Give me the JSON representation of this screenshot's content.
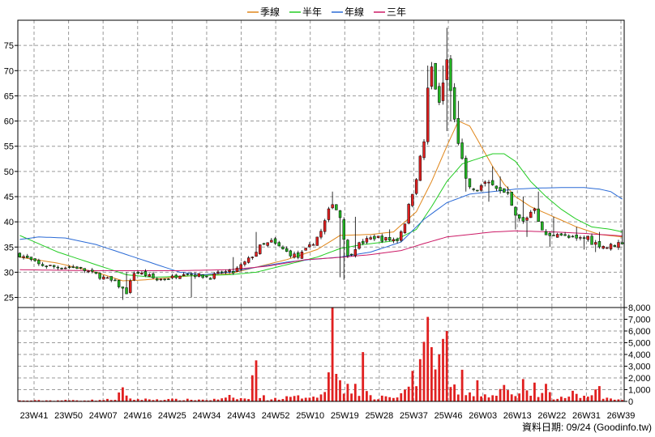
{
  "chart_data": {
    "type": "candlestick",
    "legend_position": "top-center",
    "legend": [
      {
        "key": "ma_quarter",
        "label": "季線",
        "color": "#e0861a"
      },
      {
        "key": "ma_half",
        "label": "半年",
        "color": "#22cc22"
      },
      {
        "key": "ma_year",
        "label": "年線",
        "color": "#2a6ad6"
      },
      {
        "key": "ma_3year",
        "label": "三年",
        "color": "#cc1a66"
      }
    ],
    "price_axis": {
      "min": 23,
      "max": 80,
      "ticks": [
        25,
        30,
        35,
        40,
        45,
        50,
        55,
        60,
        65,
        70,
        75
      ]
    },
    "volume_axis": {
      "min": 0,
      "max": 8000,
      "ticks": [
        0,
        1000,
        2000,
        3000,
        4000,
        5000,
        6000,
        7000,
        8000
      ],
      "tick_labels": [
        "0",
        "1,000",
        "2,000",
        "3,000",
        "4,000",
        "5,000",
        "6,000",
        "7,000",
        "8,000"
      ]
    },
    "x_ticks": [
      "23W41",
      "23W50",
      "24W07",
      "24W16",
      "24W25",
      "24W34",
      "24W43",
      "24W52",
      "25W10",
      "25W19",
      "25W28",
      "25W37",
      "25W46",
      "26W03",
      "26W13",
      "26W22",
      "26W31",
      "26W39"
    ],
    "grid": true,
    "up_color": "#e02020",
    "down_color": "#22b422",
    "bar_color": "#e02020",
    "anchors": {
      "close": [
        [
          0,
          33.5
        ],
        [
          5,
          31.5
        ],
        [
          10,
          31
        ],
        [
          15,
          31
        ],
        [
          20,
          29.5
        ],
        [
          25,
          28
        ],
        [
          28,
          26
        ],
        [
          30,
          30
        ],
        [
          33,
          29.5
        ],
        [
          36,
          28.5
        ],
        [
          40,
          29
        ],
        [
          43,
          30
        ],
        [
          46,
          29.5
        ],
        [
          50,
          29
        ],
        [
          53,
          30
        ],
        [
          56,
          30
        ],
        [
          60,
          32.5
        ],
        [
          63,
          35
        ],
        [
          66,
          36
        ],
        [
          70,
          34
        ],
        [
          73,
          33
        ],
        [
          76,
          35
        ],
        [
          79,
          38
        ],
        [
          82,
          44
        ],
        [
          84,
          41
        ],
        [
          86,
          33
        ],
        [
          88,
          35
        ],
        [
          90,
          36
        ],
        [
          93,
          37
        ],
        [
          96,
          36.5
        ],
        [
          99,
          36.5
        ],
        [
          101,
          40
        ],
        [
          104,
          49
        ],
        [
          106,
          56
        ],
        [
          107,
          66
        ],
        [
          108,
          70.5
        ],
        [
          110,
          63
        ],
        [
          112,
          72
        ],
        [
          113,
          66
        ],
        [
          114,
          60
        ],
        [
          116,
          52
        ],
        [
          117,
          48
        ],
        [
          119,
          46
        ],
        [
          121,
          47
        ],
        [
          124,
          48
        ],
        [
          126,
          46
        ],
        [
          128,
          45
        ],
        [
          130,
          41
        ],
        [
          132,
          40
        ],
        [
          135,
          43
        ],
        [
          137,
          38
        ],
        [
          139,
          37
        ],
        [
          141,
          38
        ],
        [
          143,
          37
        ],
        [
          146,
          36.5
        ],
        [
          149,
          37
        ],
        [
          150,
          36
        ],
        [
          152,
          35.5
        ],
        [
          154,
          35
        ],
        [
          156,
          35.5
        ],
        [
          158,
          36
        ]
      ],
      "ma_quarter": [
        [
          0,
          33
        ],
        [
          10,
          31.8
        ],
        [
          20,
          30
        ],
        [
          27,
          28.3
        ],
        [
          33,
          28.5
        ],
        [
          45,
          29.3
        ],
        [
          55,
          29.7
        ],
        [
          62,
          31
        ],
        [
          70,
          32.5
        ],
        [
          78,
          34.5
        ],
        [
          84,
          37.3
        ],
        [
          92,
          37.5
        ],
        [
          98,
          38
        ],
        [
          104,
          42
        ],
        [
          108,
          48
        ],
        [
          112,
          55
        ],
        [
          115,
          60
        ],
        [
          118,
          59
        ],
        [
          121,
          55
        ],
        [
          124,
          51
        ],
        [
          127,
          47.5
        ],
        [
          130,
          45
        ],
        [
          134,
          43
        ],
        [
          140,
          41
        ],
        [
          146,
          39
        ],
        [
          152,
          37.5
        ],
        [
          158,
          37
        ]
      ],
      "ma_half": [
        [
          0,
          37.3
        ],
        [
          10,
          34
        ],
        [
          20,
          31.5
        ],
        [
          28,
          29.5
        ],
        [
          35,
          29
        ],
        [
          45,
          29.3
        ],
        [
          55,
          29.5
        ],
        [
          62,
          30
        ],
        [
          70,
          31.5
        ],
        [
          78,
          33
        ],
        [
          84,
          34.7
        ],
        [
          90,
          35.5
        ],
        [
          98,
          36.2
        ],
        [
          104,
          38.5
        ],
        [
          108,
          43
        ],
        [
          112,
          48
        ],
        [
          116,
          51.5
        ],
        [
          120,
          52.5
        ],
        [
          124,
          53.5
        ],
        [
          127,
          53.5
        ],
        [
          130,
          52
        ],
        [
          134,
          48
        ],
        [
          138,
          45
        ],
        [
          142,
          42.5
        ],
        [
          146,
          40.5
        ],
        [
          150,
          39
        ],
        [
          155,
          38.5
        ],
        [
          158,
          38
        ]
      ],
      "ma_year": [
        [
          0,
          36.5
        ],
        [
          5,
          37
        ],
        [
          12,
          36.8
        ],
        [
          20,
          35.5
        ],
        [
          28,
          33.5
        ],
        [
          36,
          31.5
        ],
        [
          42,
          30
        ],
        [
          48,
          29.5
        ],
        [
          55,
          30
        ],
        [
          62,
          31
        ],
        [
          70,
          32
        ],
        [
          76,
          32.5
        ],
        [
          84,
          33
        ],
        [
          92,
          34
        ],
        [
          100,
          36
        ],
        [
          106,
          40.5
        ],
        [
          112,
          43.8
        ],
        [
          118,
          45.5
        ],
        [
          124,
          46
        ],
        [
          130,
          46.5
        ],
        [
          136,
          46.7
        ],
        [
          142,
          46.8
        ],
        [
          148,
          46.8
        ],
        [
          152,
          46.5
        ],
        [
          155,
          46
        ],
        [
          158,
          44.5
        ]
      ],
      "ma_3year": [
        [
          0,
          30.5
        ],
        [
          20,
          30.3
        ],
        [
          40,
          30.3
        ],
        [
          55,
          30.5
        ],
        [
          65,
          31.2
        ],
        [
          75,
          32.5
        ],
        [
          85,
          33
        ],
        [
          92,
          33.5
        ],
        [
          100,
          34.3
        ],
        [
          106,
          35.7
        ],
        [
          112,
          37
        ],
        [
          118,
          37.5
        ],
        [
          124,
          38
        ],
        [
          130,
          38.2
        ],
        [
          140,
          38
        ],
        [
          148,
          37.7
        ],
        [
          152,
          37.5
        ],
        [
          158,
          37.2
        ]
      ],
      "volume": [
        [
          0,
          80
        ],
        [
          10,
          100
        ],
        [
          20,
          120
        ],
        [
          25,
          200
        ],
        [
          27,
          1200
        ],
        [
          28,
          400
        ],
        [
          30,
          200
        ],
        [
          40,
          180
        ],
        [
          50,
          150
        ],
        [
          55,
          300
        ],
        [
          60,
          250
        ],
        [
          62,
          3500
        ],
        [
          63,
          600
        ],
        [
          65,
          200
        ],
        [
          70,
          350
        ],
        [
          75,
          450
        ],
        [
          80,
          700
        ],
        [
          82,
          7500
        ],
        [
          84,
          1500
        ],
        [
          86,
          1200
        ],
        [
          88,
          400
        ],
        [
          90,
          900
        ],
        [
          93,
          200
        ],
        [
          96,
          500
        ],
        [
          99,
          350
        ],
        [
          101,
          1100
        ],
        [
          103,
          2000
        ],
        [
          105,
          2800
        ],
        [
          106,
          4500
        ],
        [
          107,
          7200
        ],
        [
          108,
          3500
        ],
        [
          110,
          4000
        ],
        [
          112,
          6000
        ],
        [
          113,
          2500
        ],
        [
          114,
          1500
        ],
        [
          116,
          1000
        ],
        [
          117,
          800
        ],
        [
          120,
          400
        ],
        [
          124,
          500
        ],
        [
          127,
          1000
        ],
        [
          130,
          400
        ],
        [
          134,
          800
        ],
        [
          136,
          400
        ],
        [
          138,
          1000
        ],
        [
          140,
          300
        ],
        [
          146,
          500
        ],
        [
          150,
          400
        ],
        [
          152,
          1200
        ],
        [
          153,
          300
        ],
        [
          158,
          150
        ]
      ]
    },
    "spikes": {
      "volume": [
        [
          27,
          1200
        ],
        [
          55,
          550
        ],
        [
          62,
          3500
        ],
        [
          82,
          8000
        ],
        [
          84,
          1800
        ],
        [
          86,
          1500
        ],
        [
          88,
          1500
        ],
        [
          90,
          4200
        ],
        [
          101,
          1000
        ],
        [
          103,
          2600
        ],
        [
          105,
          3600
        ],
        [
          107,
          7200
        ],
        [
          110,
          4000
        ],
        [
          112,
          6000
        ],
        [
          116,
          2700
        ],
        [
          120,
          1800
        ],
        [
          127,
          1400
        ],
        [
          132,
          1900
        ],
        [
          135,
          1600
        ],
        [
          138,
          1500
        ],
        [
          145,
          900
        ],
        [
          152,
          1300
        ]
      ],
      "high": [
        [
          28,
          30
        ],
        [
          34,
          29.5
        ],
        [
          46,
          30
        ],
        [
          56,
          33
        ],
        [
          62,
          38
        ],
        [
          66,
          36.8
        ],
        [
          82,
          46
        ],
        [
          88,
          41
        ],
        [
          97,
          38.5
        ],
        [
          107,
          71
        ],
        [
          108,
          71
        ],
        [
          111,
          71
        ],
        [
          112,
          78.5
        ],
        [
          113,
          73
        ],
        [
          115,
          64
        ],
        [
          124,
          51
        ],
        [
          126,
          49
        ],
        [
          128,
          47
        ],
        [
          132,
          45
        ],
        [
          136,
          46
        ],
        [
          140,
          41
        ],
        [
          146,
          39
        ],
        [
          152,
          38
        ],
        [
          158,
          38.5
        ]
      ],
      "low": [
        [
          27,
          24.5
        ],
        [
          45,
          25
        ],
        [
          84,
          29
        ],
        [
          85,
          28.5
        ],
        [
          112,
          58
        ],
        [
          113,
          60
        ],
        [
          117,
          46
        ],
        [
          123,
          44
        ],
        [
          130,
          38.5
        ],
        [
          133,
          37
        ],
        [
          139,
          35
        ],
        [
          148,
          34.5
        ],
        [
          151,
          34
        ]
      ]
    },
    "credit": "資料日期: 09/24  (Goodinfo.tw)"
  }
}
